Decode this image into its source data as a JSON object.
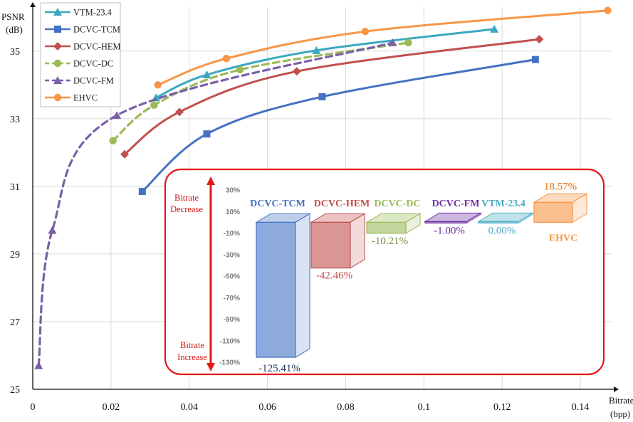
{
  "chart_data": [
    {
      "type": "line",
      "title": "",
      "xlabel": "Bitrate (bpp)",
      "xlabel_lines": [
        "Bitrate",
        "(bpp)"
      ],
      "ylabel": "PSNR (dB)",
      "ylabel_lines": [
        "PSNR",
        "(dB)"
      ],
      "xlim": [
        0,
        0.148
      ],
      "ylim": [
        25,
        36.3
      ],
      "xticks": [
        0,
        0.02,
        0.04,
        0.06,
        0.08,
        0.1,
        0.12,
        0.14
      ],
      "yticks": [
        25,
        27,
        29,
        31,
        33,
        35
      ],
      "grid": true,
      "legend": "top-left",
      "series": [
        {
          "name": "VTM-23.4",
          "color": "#3aa8c1",
          "marker": "triangle",
          "dash": false,
          "x": [
            0.0315,
            0.0445,
            0.0725,
            0.118
          ],
          "y": [
            33.62,
            34.3,
            35.02,
            35.65
          ]
        },
        {
          "name": "DCVC-TCM",
          "color": "#4472c4",
          "marker": "square",
          "dash": false,
          "x": [
            0.028,
            0.0445,
            0.074,
            0.1285
          ],
          "y": [
            30.85,
            32.55,
            33.65,
            34.75
          ]
        },
        {
          "name": "DCVC-HEM",
          "color": "#c0504d",
          "marker": "diamond",
          "dash": false,
          "x": [
            0.0235,
            0.0375,
            0.0675,
            0.1295
          ],
          "y": [
            31.95,
            33.2,
            34.4,
            35.35
          ]
        },
        {
          "name": "DCVC-DC",
          "color": "#9bbb59",
          "marker": "circle",
          "dash": true,
          "x": [
            0.0205,
            0.031,
            0.053,
            0.096
          ],
          "y": [
            32.35,
            33.4,
            34.45,
            35.25
          ]
        },
        {
          "name": "DCVC-FM",
          "color": "#7b5fa8",
          "marker": "triangle",
          "dash": true,
          "x": [
            0.0015,
            0.005,
            0.0215,
            0.092
          ],
          "y": [
            25.7,
            29.7,
            33.1,
            35.25
          ]
        },
        {
          "name": "EHVC",
          "color": "#f79646",
          "marker": "circle",
          "dash": false,
          "x": [
            0.032,
            0.0495,
            0.085,
            0.147
          ],
          "y": [
            34.0,
            34.78,
            35.58,
            36.2
          ]
        }
      ]
    },
    {
      "type": "bar",
      "title": "",
      "ylim": [
        -130,
        30
      ],
      "yticks": [
        "30%",
        "10%",
        "-10%",
        "-30%",
        "-50%",
        "-70%",
        "-90%",
        "-110%",
        "-130%"
      ],
      "top_annotation": [
        "Bitrate",
        "Decrease"
      ],
      "bottom_annotation": [
        "Bitrate",
        "Increase"
      ],
      "categories": [
        "DCVC-TCM",
        "DCVC-HEM",
        "DCVC-DC",
        "DCVC-FM",
        "VTM-23.4",
        "EHVC"
      ],
      "labels": [
        "-125.41%",
        "-42.46%",
        "-10.21%",
        "-1.00%",
        "0.00%",
        "18.57%"
      ],
      "values": [
        -125.41,
        -42.46,
        -10.21,
        -1.0,
        0.0,
        18.57
      ],
      "colors": [
        "#4472c4",
        "#c0504d",
        "#9bbb59",
        "#7030a0",
        "#4bacc6",
        "#f79646"
      ],
      "label_colors": [
        "#1f3864",
        "#c0504d",
        "#77933c",
        "#7030a0",
        "#4bacc6",
        "#e36c09"
      ]
    }
  ]
}
